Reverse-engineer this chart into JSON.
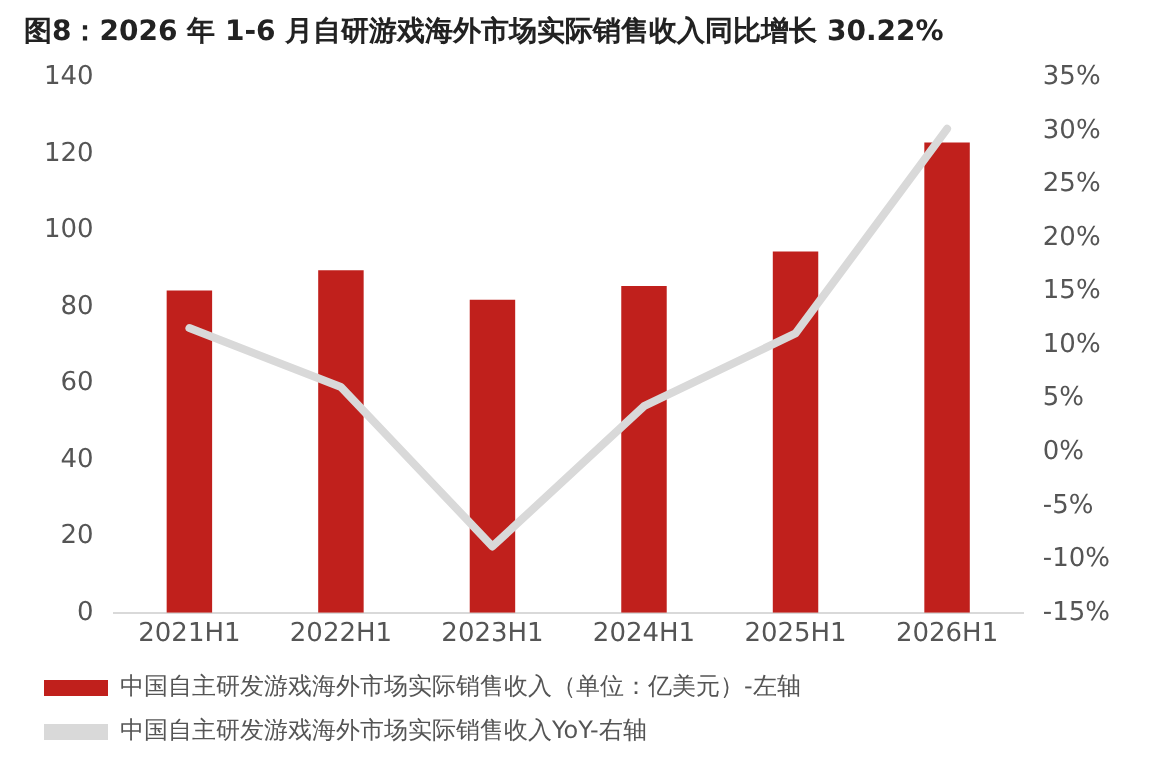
{
  "chart_data": {
    "type": "bar",
    "title": "图8：2026 年 1-6 月自研游戏海外市场实际销售收入同比增长 30.22%",
    "categories": [
      "2021H1",
      "2022H1",
      "2023H1",
      "2024H1",
      "2025H1",
      "2026H1"
    ],
    "series": [
      {
        "name": "中国自主研发游戏海外市场实际销售收入（单位：亿美元）-左轴",
        "color": "#c0201c",
        "values": [
          84.3,
          89.6,
          81.9,
          85.5,
          94.5,
          123.0
        ]
      },
      {
        "name": "中国自主研发游戏海外市场实际销售收入YoY-右轴",
        "type": "line",
        "axis": "y2",
        "color": "#d9d9d9",
        "values": [
          11.6,
          6.1,
          -8.8,
          4.3,
          11.1,
          30.22
        ]
      }
    ],
    "ylim": [
      0,
      140
    ],
    "yticks": [
      0,
      20,
      40,
      60,
      80,
      100,
      120,
      140
    ],
    "y2lim": [
      -15,
      35
    ],
    "y2ticks": [
      {
        "value": -15,
        "label": "-15%"
      },
      {
        "value": -10,
        "label": "-10%"
      },
      {
        "value": -5,
        "label": "-5%"
      },
      {
        "value": 0,
        "label": "0%"
      },
      {
        "value": 5,
        "label": "5%"
      },
      {
        "value": 10,
        "label": "10%"
      },
      {
        "value": 15,
        "label": "15%"
      },
      {
        "value": 20,
        "label": "20%"
      },
      {
        "value": 25,
        "label": "25%"
      },
      {
        "value": 30,
        "label": "30%"
      },
      {
        "value": 35,
        "label": "35%"
      }
    ],
    "legend": "bottom",
    "grid": false,
    "marker": "none"
  }
}
